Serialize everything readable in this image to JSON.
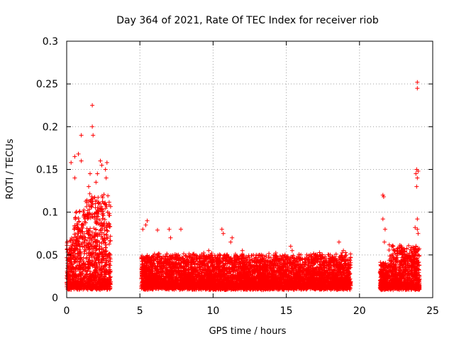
{
  "chart_data": {
    "type": "scatter",
    "title": "Day 364 of 2021, Rate Of TEC Index for receiver riob",
    "xlabel": "GPS time / hours",
    "ylabel": "ROTI / TECUs",
    "xlim": [
      0,
      25
    ],
    "ylim": [
      0,
      0.3
    ],
    "xticks": [
      0,
      5,
      10,
      15,
      20,
      25
    ],
    "xtick_labels": [
      "0",
      "5",
      "10",
      "15",
      "20",
      "25"
    ],
    "yticks": [
      0,
      0.05,
      0.1,
      0.15,
      0.2,
      0.25,
      0.3
    ],
    "ytick_labels": [
      "0",
      "0.05",
      "0.1",
      "0.15",
      "0.2",
      "0.25",
      "0.3"
    ],
    "grid": true,
    "marker": "+",
    "marker_color": "#ff0000",
    "series": [
      {
        "name": "ROTI",
        "segments": [
          {
            "x_start": 0.0,
            "x_end": 3.0,
            "baseline": 0.012,
            "typical_max": 0.1,
            "peak": 0.225,
            "outliers": [
              [
                1.75,
                0.225
              ],
              [
                1.75,
                0.2
              ],
              [
                1.8,
                0.19
              ],
              [
                1.0,
                0.19
              ],
              [
                0.55,
                0.165
              ],
              [
                0.8,
                0.168
              ],
              [
                1.0,
                0.16
              ],
              [
                2.3,
                0.16
              ],
              [
                2.75,
                0.158
              ],
              [
                2.65,
                0.15
              ],
              [
                2.1,
                0.145
              ],
              [
                2.4,
                0.155
              ],
              [
                0.3,
                0.158
              ],
              [
                1.6,
                0.145
              ],
              [
                0.55,
                0.14
              ],
              [
                2.7,
                0.14
              ],
              [
                1.5,
                0.13
              ],
              [
                2.0,
                0.135
              ]
            ]
          },
          {
            "x_start": 5.1,
            "x_end": 19.4,
            "baseline": 0.012,
            "typical_max": 0.05,
            "peak": 0.09,
            "outliers": [
              [
                5.5,
                0.09
              ],
              [
                5.4,
                0.085
              ],
              [
                5.2,
                0.08
              ],
              [
                6.2,
                0.079
              ],
              [
                7.0,
                0.08
              ],
              [
                7.8,
                0.08
              ],
              [
                10.6,
                0.08
              ],
              [
                10.7,
                0.075
              ],
              [
                11.3,
                0.07
              ],
              [
                11.2,
                0.065
              ],
              [
                7.1,
                0.07
              ],
              [
                9.7,
                0.055
              ],
              [
                12.0,
                0.055
              ],
              [
                13.3,
                0.05
              ],
              [
                15.3,
                0.06
              ],
              [
                15.4,
                0.055
              ],
              [
                16.0,
                0.05
              ],
              [
                18.6,
                0.065
              ],
              [
                18.0,
                0.05
              ],
              [
                18.9,
                0.055
              ]
            ]
          },
          {
            "x_start": 21.4,
            "x_end": 24.1,
            "baseline": 0.012,
            "typical_max": 0.06,
            "peak": 0.252,
            "outliers": [
              [
                23.95,
                0.252
              ],
              [
                23.95,
                0.245
              ],
              [
                23.9,
                0.15
              ],
              [
                24.0,
                0.148
              ],
              [
                23.85,
                0.145
              ],
              [
                23.95,
                0.14
              ],
              [
                23.9,
                0.13
              ],
              [
                21.6,
                0.12
              ],
              [
                21.65,
                0.118
              ],
              [
                21.6,
                0.092
              ],
              [
                23.95,
                0.092
              ],
              [
                23.8,
                0.082
              ],
              [
                21.75,
                0.08
              ],
              [
                23.95,
                0.08
              ],
              [
                24.0,
                0.075
              ],
              [
                21.7,
                0.065
              ]
            ]
          }
        ]
      }
    ]
  }
}
